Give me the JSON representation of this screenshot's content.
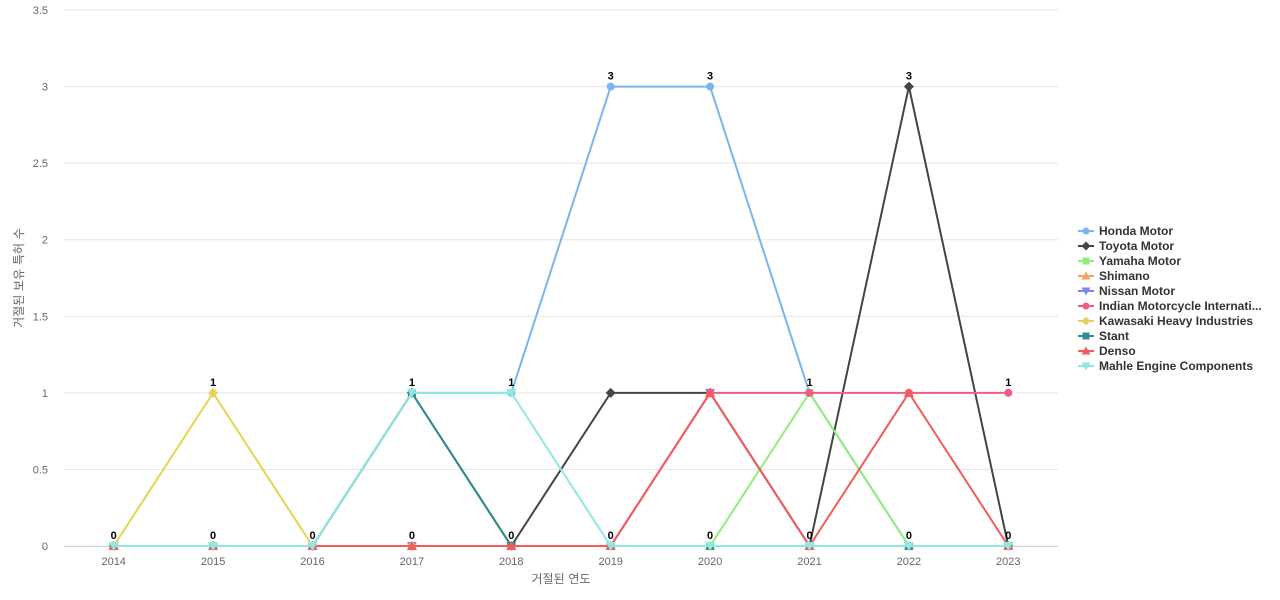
{
  "chart_data": {
    "type": "line",
    "title": "",
    "xlabel": "거절된 연도",
    "ylabel": "거절된 보유 특허 수",
    "ylim": [
      0,
      3.5
    ],
    "yticks": [
      "0",
      "0.5",
      "1",
      "1.5",
      "2",
      "2.5",
      "3",
      "3.5"
    ],
    "ytick_values": [
      0,
      0.5,
      1,
      1.5,
      2,
      2.5,
      3,
      3.5
    ],
    "categories": [
      "2014",
      "2015",
      "2016",
      "2017",
      "2018",
      "2019",
      "2020",
      "2021",
      "2022",
      "2023"
    ],
    "grid": true,
    "legend_position": "right",
    "series": [
      {
        "name": "Honda Motor",
        "color": "#7cb5ec",
        "marker": "circle",
        "values": [
          0,
          0,
          0,
          1,
          1,
          3,
          3,
          1,
          0,
          0
        ]
      },
      {
        "name": "Toyota Motor",
        "color": "#434348",
        "marker": "diamond",
        "values": [
          0,
          0,
          0,
          1,
          0,
          1,
          1,
          0,
          3,
          0
        ]
      },
      {
        "name": "Yamaha Motor",
        "color": "#90ed7d",
        "marker": "square",
        "values": [
          0,
          0,
          0,
          0,
          0,
          0,
          0,
          1,
          0,
          0
        ]
      },
      {
        "name": "Shimano",
        "color": "#f7a35c",
        "marker": "triangle",
        "values": [
          0,
          0,
          0,
          0,
          0,
          0,
          0,
          0,
          0,
          0
        ]
      },
      {
        "name": "Nissan Motor",
        "color": "#8085e9",
        "marker": "triangle-down",
        "values": [
          0,
          0,
          0,
          0,
          0,
          0,
          1,
          0,
          0,
          0
        ]
      },
      {
        "name": "Indian Motorcycle Internati...",
        "color": "#f15c80",
        "marker": "circle",
        "values": [
          0,
          0,
          0,
          0,
          0,
          0,
          1,
          1,
          1,
          1
        ]
      },
      {
        "name": "Kawasaki Heavy Industries",
        "color": "#e4d354",
        "marker": "diamond",
        "values": [
          0,
          1,
          0,
          0,
          0,
          0,
          0,
          0,
          0,
          0
        ]
      },
      {
        "name": "Stant",
        "color": "#2b908f",
        "marker": "square",
        "values": [
          0,
          0,
          0,
          1,
          0,
          0,
          0,
          0,
          0,
          0
        ]
      },
      {
        "name": "Denso",
        "color": "#f45b5b",
        "marker": "triangle",
        "values": [
          0,
          0,
          0,
          0,
          0,
          0,
          1,
          0,
          1,
          0
        ]
      },
      {
        "name": "Mahle Engine Components",
        "color": "#91e8e1",
        "marker": "triangle-down",
        "values": [
          0,
          0,
          0,
          1,
          1,
          0,
          0,
          0,
          0,
          0
        ]
      }
    ],
    "data_labels": [
      "0",
      "1",
      "0",
      "1",
      "1",
      "3",
      "3",
      "1",
      "3",
      "1"
    ],
    "bottom_labels": [
      "0",
      "0",
      "0",
      "0",
      "0",
      "0",
      "0",
      "0",
      "0",
      "0"
    ]
  }
}
